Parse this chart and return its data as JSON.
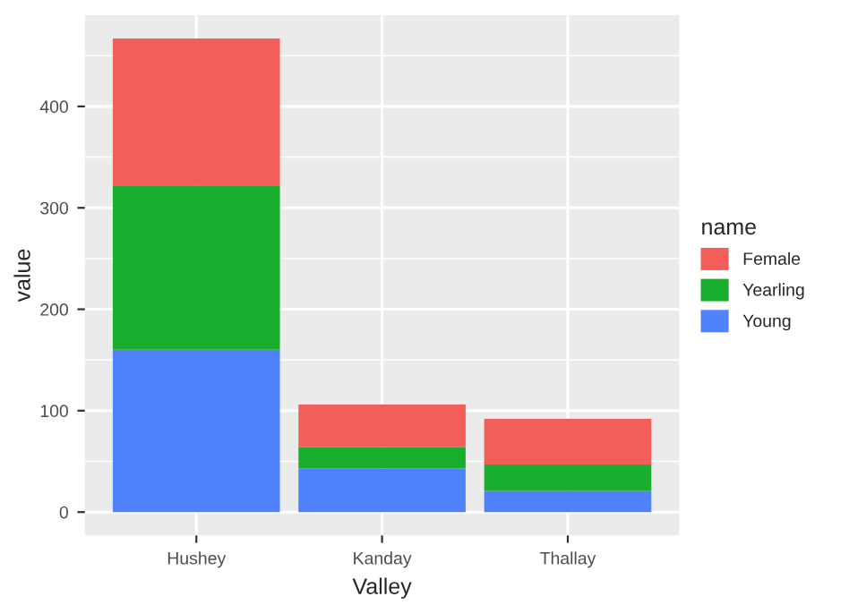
{
  "chart_data": {
    "type": "bar",
    "stacked": true,
    "xlabel": "Valley",
    "ylabel": "value",
    "legend_title": "name",
    "categories": [
      "Hushey",
      "Kanday",
      "Thallay"
    ],
    "series": [
      {
        "name": "Young",
        "color": "#5083fb",
        "values": [
          160,
          43,
          21
        ]
      },
      {
        "name": "Yearling",
        "color": "#1aae2f",
        "values": [
          162,
          21,
          26
        ]
      },
      {
        "name": "Female",
        "color": "#f35e5a",
        "values": [
          145,
          42,
          45
        ]
      }
    ],
    "ylim": [
      -23,
      490
    ],
    "yticks": [
      0,
      100,
      200,
      300,
      400
    ],
    "grid": true,
    "legend": "right"
  }
}
